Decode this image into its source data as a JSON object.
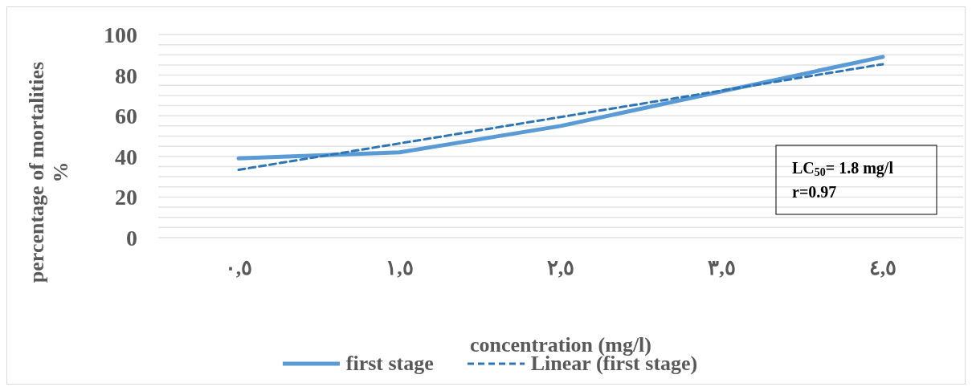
{
  "chart_data": {
    "type": "line",
    "xlabel": "concentration (mg/l)",
    "ylabel": "percentage of mortalities\n%",
    "categories": [
      "٠,٥",
      "١,٥",
      "٢,٥",
      "٣,٥",
      "٤,٥"
    ],
    "series": [
      {
        "name": "first stage",
        "type": "line",
        "color": "#5b9bd5",
        "line_style": "solid",
        "values": [
          39,
          42,
          55,
          72,
          89
        ]
      },
      {
        "name": "Linear (first stage)",
        "type": "line",
        "color": "#2e75b6",
        "line_style": "dashed",
        "values": [
          33.4,
          46.4,
          59.4,
          72.4,
          85.4
        ]
      }
    ],
    "ylim": [
      0,
      100
    ],
    "yticks": [
      0,
      {
        "value": 5,
        "label": null
      },
      {
        "value": 10,
        "label": null
      },
      {
        "value": 15,
        "label": null
      },
      20,
      {
        "value": 25,
        "label": null
      },
      {
        "value": 30,
        "label": null
      },
      {
        "value": 35,
        "label": null
      },
      40,
      {
        "value": 45,
        "label": null
      },
      {
        "value": 50,
        "label": null
      },
      {
        "value": 55,
        "label": null
      },
      60,
      {
        "value": 65,
        "label": null
      },
      {
        "value": 70,
        "label": null
      },
      {
        "value": 75,
        "label": null
      },
      80,
      {
        "value": 85,
        "label": null
      },
      {
        "value": 90,
        "label": null
      },
      {
        "value": 95,
        "label": null
      },
      100
    ],
    "grid": "y",
    "legend": "bottom",
    "marker": "none",
    "annotations": [
      "LC$_{50}$= 1.8 mg/l",
      "r=0.97"
    ]
  }
}
